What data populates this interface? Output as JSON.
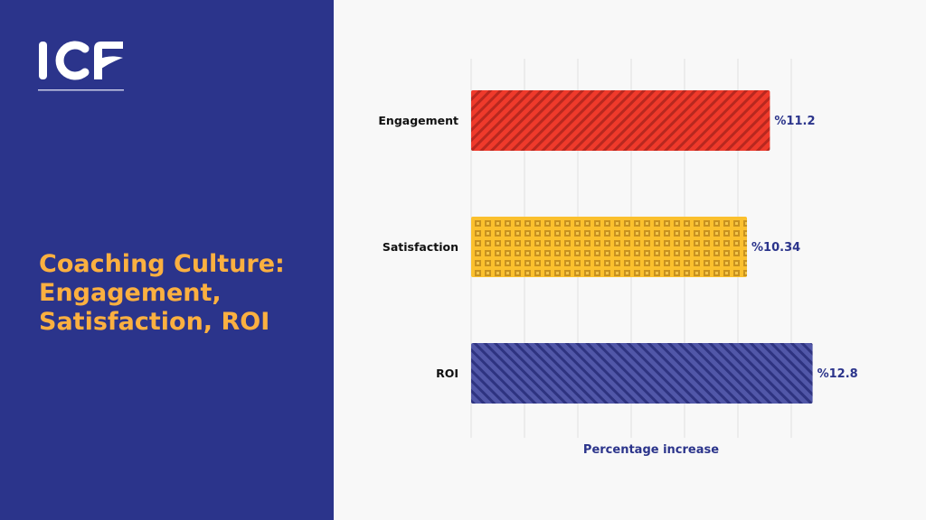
{
  "sidebar": {
    "logo_text": "ICF",
    "title": "Coaching Culture: Engagement, Satisfaction, ROI",
    "background": "#2b348b",
    "title_color": "#fbb040"
  },
  "chart_data": {
    "type": "bar",
    "orientation": "horizontal",
    "categories": [
      "Engagement",
      "Satisfaction",
      "ROI"
    ],
    "values": [
      11.2,
      10.34,
      12.8
    ],
    "labels": [
      "%11.2",
      "%10.34",
      "%12.8"
    ],
    "colors": [
      "#e8302a",
      "#f5b731",
      "#4a4fa0"
    ],
    "patterns": [
      "diagonal-stripes",
      "grid-squares",
      "diagonal-stripes"
    ],
    "xlabel": "Percentage increase",
    "xlim": [
      0,
      14
    ],
    "grid": true,
    "grid_step": 2
  }
}
